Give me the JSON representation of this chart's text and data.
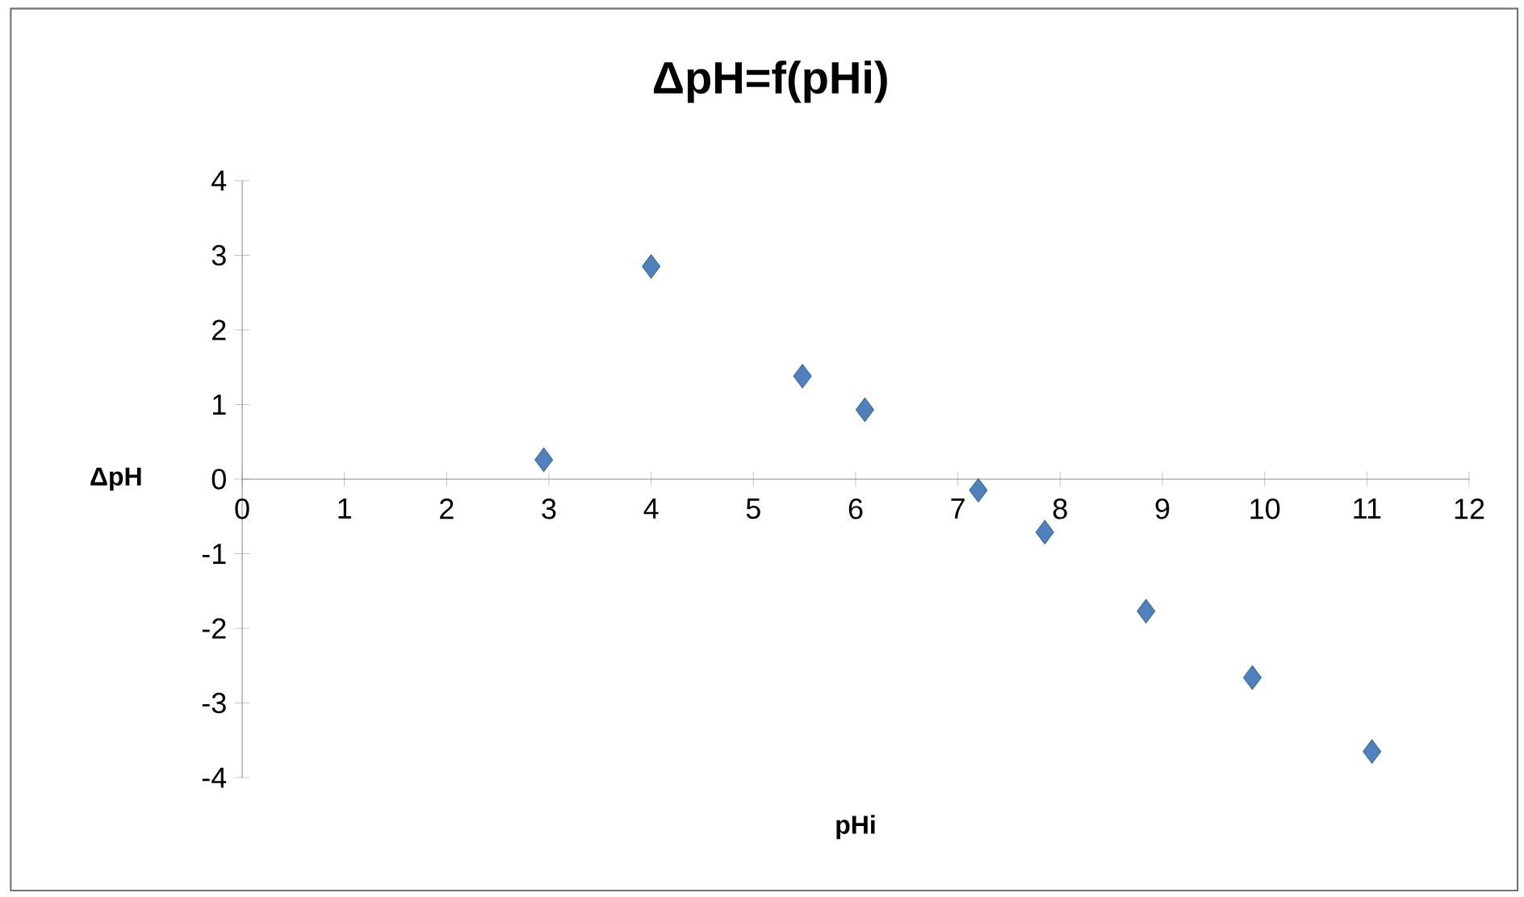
{
  "chart_data": {
    "type": "scatter",
    "title": "ΔpH=f(pHi)",
    "xlabel": "pHi",
    "ylabel": "ΔpH",
    "x": [
      2.95,
      4.0,
      5.48,
      6.09,
      7.2,
      7.85,
      8.84,
      9.88,
      11.05
    ],
    "series": [
      {
        "color": "#4f81bd",
        "values": [
          0.26,
          2.85,
          1.38,
          0.93,
          -0.15,
          -0.71,
          -1.77,
          -2.66,
          -3.65
        ]
      }
    ],
    "xlim": [
      0,
      12
    ],
    "ylim": [
      -4,
      4
    ],
    "xticks": [
      0,
      1,
      2,
      3,
      4,
      5,
      6,
      7,
      8,
      9,
      10,
      11,
      12
    ],
    "yticks": [
      -4,
      -3,
      -2,
      -1,
      0,
      1,
      2,
      3,
      4
    ],
    "marker": "diamond",
    "grid": false
  }
}
